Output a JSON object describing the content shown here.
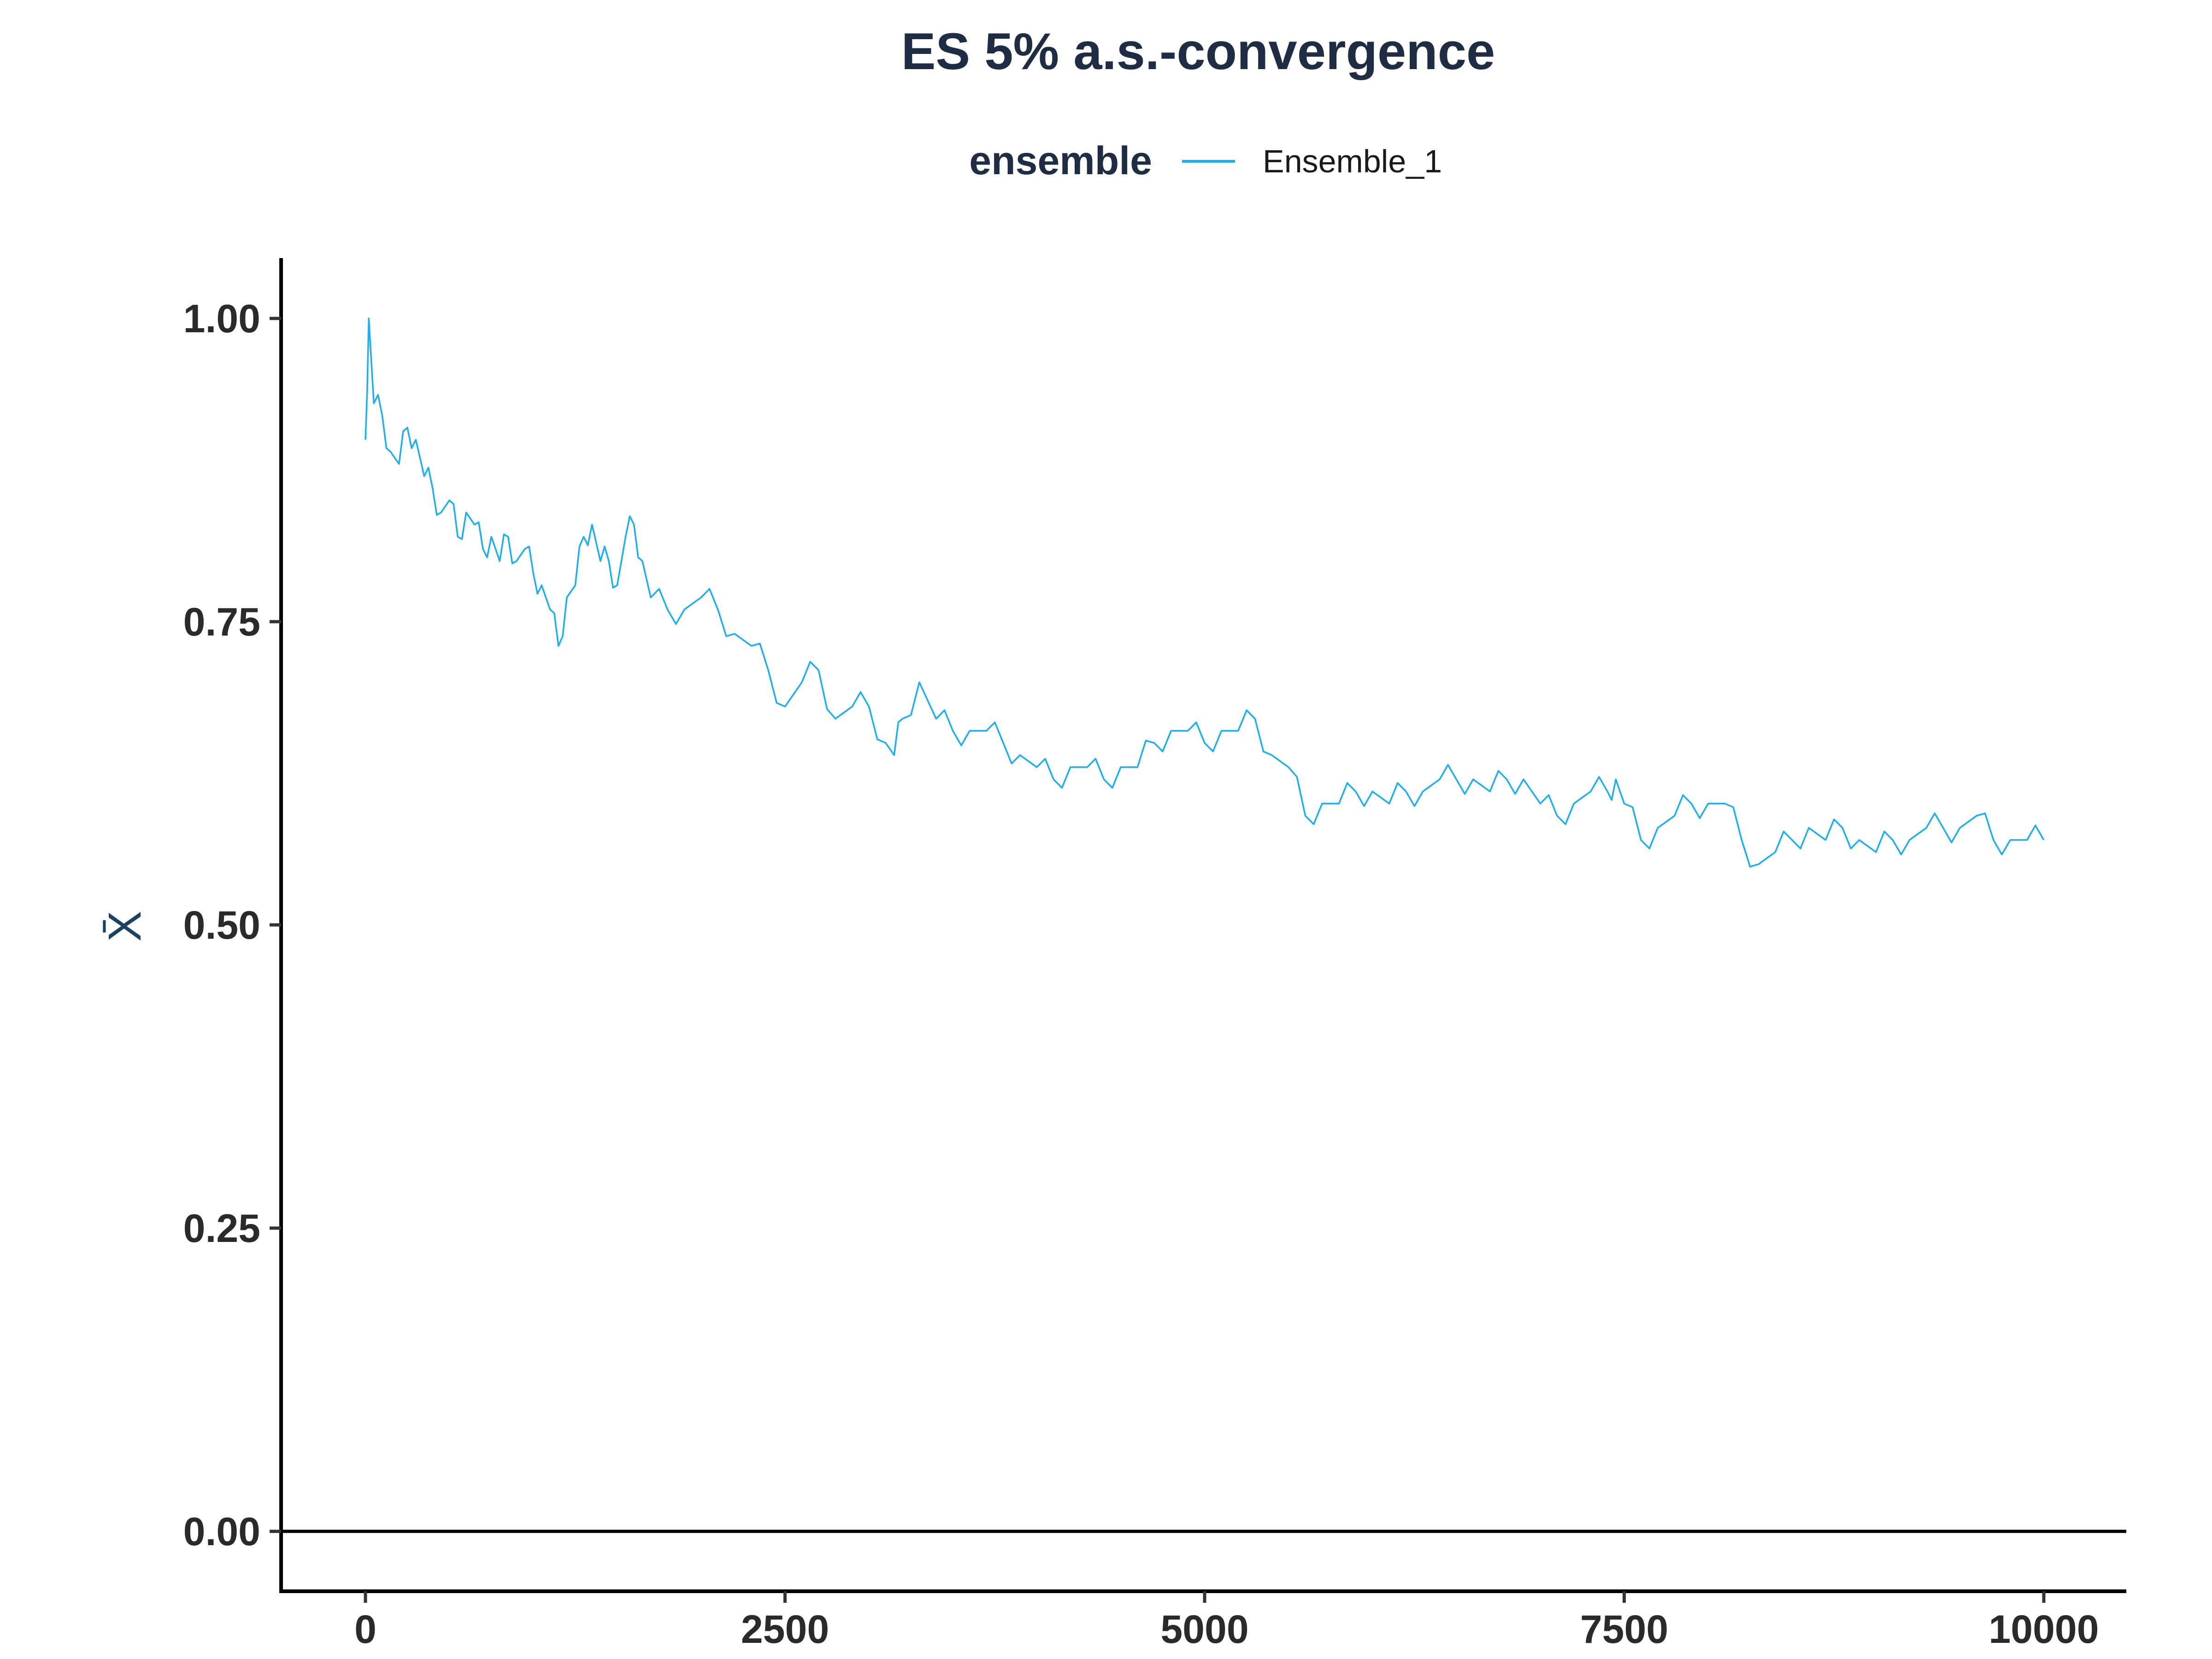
{
  "chart_data": {
    "type": "line",
    "title": "ES 5% a.s.-convergence",
    "xlabel": "",
    "ylabel": "X̄",
    "legend": {
      "title": "ensemble",
      "entries": [
        "Ensemble_1"
      ],
      "placement": "top"
    },
    "xlim": [
      -500,
      10500
    ],
    "ylim": [
      -0.05,
      1.05
    ],
    "x_ticks": [
      0,
      2500,
      5000,
      7500,
      10000
    ],
    "x_tick_labels": [
      "0",
      "2500",
      "5000",
      "7500",
      "10000"
    ],
    "y_ticks": [
      0,
      0.25,
      0.5,
      0.75,
      1.0
    ],
    "y_tick_labels": [
      "0.00",
      "0.25",
      "0.50",
      "0.75",
      "1.00"
    ],
    "hline": 0,
    "grid": false,
    "series": [
      {
        "name": "Ensemble_1",
        "color": "#1aaef5",
        "x": [
          0,
          20,
          50,
          100,
          150,
          200,
          250,
          300,
          350,
          400,
          450,
          500,
          550,
          600,
          650,
          700,
          750,
          800,
          850,
          900,
          950,
          1000,
          1050,
          1100,
          1150,
          1200,
          1250,
          1300,
          1350,
          1400,
          1450,
          1500,
          1550,
          1600,
          1650,
          1700,
          1800,
          1900,
          2000,
          2100,
          2200,
          2300,
          2400,
          2500,
          2600,
          2700,
          2800,
          2900,
          3000,
          3100,
          3150,
          3200,
          3300,
          3400,
          3500,
          3600,
          3700,
          3800,
          3900,
          4000,
          4100,
          4200,
          4300,
          4400,
          4500,
          4600,
          4700,
          4800,
          4900,
          5000,
          5100,
          5200,
          5300,
          5400,
          5500,
          5600,
          5700,
          5800,
          5900,
          6000,
          6100,
          6200,
          6300,
          6400,
          6500,
          6600,
          6700,
          6800,
          6900,
          7000,
          7100,
          7200,
          7300,
          7400,
          7450,
          7500,
          7600,
          7700,
          7800,
          7900,
          8000,
          8100,
          8200,
          8300,
          8400,
          8500,
          8600,
          8700,
          8800,
          8900,
          9000,
          9100,
          9200,
          9300,
          9400,
          9500,
          9600,
          9700,
          9800,
          9900,
          10000
        ],
        "y": [
          0.9,
          1.0,
          0.93,
          0.92,
          0.89,
          0.88,
          0.91,
          0.9,
          0.87,
          0.86,
          0.84,
          0.85,
          0.82,
          0.84,
          0.83,
          0.81,
          0.82,
          0.8,
          0.82,
          0.8,
          0.81,
          0.79,
          0.78,
          0.76,
          0.73,
          0.77,
          0.78,
          0.82,
          0.83,
          0.8,
          0.8,
          0.78,
          0.82,
          0.83,
          0.8,
          0.77,
          0.76,
          0.76,
          0.77,
          0.76,
          0.74,
          0.73,
          0.71,
          0.68,
          0.7,
          0.71,
          0.67,
          0.68,
          0.68,
          0.65,
          0.64,
          0.67,
          0.7,
          0.67,
          0.66,
          0.66,
          0.66,
          0.65,
          0.64,
          0.63,
          0.62,
          0.63,
          0.63,
          0.62,
          0.63,
          0.63,
          0.65,
          0.66,
          0.66,
          0.65,
          0.66,
          0.66,
          0.67,
          0.64,
          0.63,
          0.59,
          0.6,
          0.6,
          0.61,
          0.61,
          0.6,
          0.61,
          0.61,
          0.62,
          0.62,
          0.62,
          0.61,
          0.62,
          0.62,
          0.6,
          0.59,
          0.6,
          0.61,
          0.61,
          0.62,
          0.6,
          0.57,
          0.58,
          0.59,
          0.6,
          0.6,
          0.6,
          0.57,
          0.55,
          0.56,
          0.57,
          0.58,
          0.57,
          0.58,
          0.57,
          0.56,
          0.57,
          0.57,
          0.58,
          0.58,
          0.58,
          0.59,
          0.57,
          0.57,
          0.57,
          0.57
        ]
      }
    ]
  }
}
